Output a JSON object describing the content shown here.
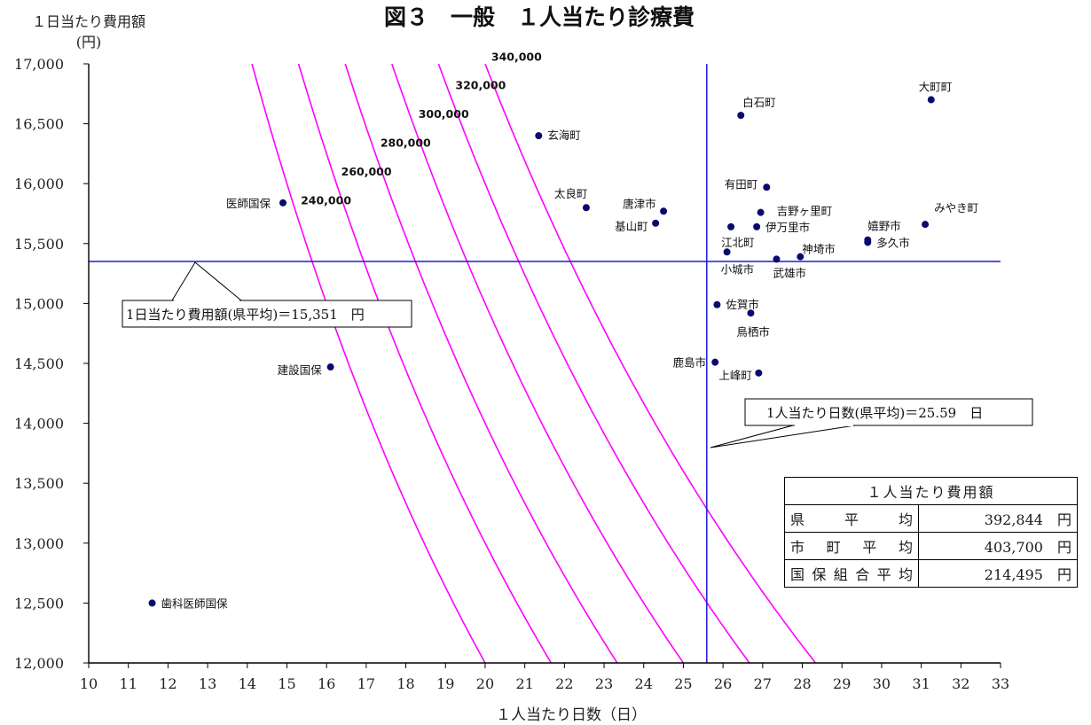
{
  "chart_data": {
    "type": "scatter",
    "title": "図３　一般　１人当たり診療費",
    "xlabel": "１人当たり日数（日）",
    "ylabel_line1": "１日当たり費用額",
    "ylabel_line2": "(円)",
    "xlim": [
      10,
      33
    ],
    "ylim": [
      12000,
      17000
    ],
    "x_ticks": [
      "10",
      "11",
      "12",
      "13",
      "14",
      "15",
      "16",
      "17",
      "18",
      "19",
      "20",
      "21",
      "22",
      "23",
      "24",
      "25",
      "26",
      "27",
      "28",
      "29",
      "30",
      "31",
      "32",
      "33"
    ],
    "y_ticks": [
      "12,000",
      "12,500",
      "13,000",
      "13,500",
      "14,000",
      "14,500",
      "15,000",
      "15,500",
      "16,000",
      "16,500",
      "17,000"
    ],
    "points": [
      {
        "name": "大町町",
        "x": 31.25,
        "y": 16700
      },
      {
        "name": "白石町",
        "x": 26.45,
        "y": 16570
      },
      {
        "name": "玄海町",
        "x": 21.35,
        "y": 16400
      },
      {
        "name": "有田町",
        "x": 27.1,
        "y": 15970
      },
      {
        "name": "医師国保",
        "x": 14.9,
        "y": 15840
      },
      {
        "name": "太良町",
        "x": 22.55,
        "y": 15800
      },
      {
        "name": "唐津市",
        "x": 24.5,
        "y": 15770
      },
      {
        "name": "吉野ヶ里町",
        "x": 26.95,
        "y": 15760
      },
      {
        "name": "基山町",
        "x": 24.3,
        "y": 15670
      },
      {
        "name": "みやき町",
        "x": 31.1,
        "y": 15660
      },
      {
        "name": "伊万里市",
        "x": 26.85,
        "y": 15640
      },
      {
        "name": "江北町",
        "x": 26.2,
        "y": 15640
      },
      {
        "name": "嬉野市",
        "x": 29.65,
        "y": 15530
      },
      {
        "name": "多久市",
        "x": 29.65,
        "y": 15510
      },
      {
        "name": "小城市",
        "x": 26.1,
        "y": 15430
      },
      {
        "name": "神埼市",
        "x": 27.95,
        "y": 15390
      },
      {
        "name": "武雄市",
        "x": 27.35,
        "y": 15370
      },
      {
        "name": "佐賀市",
        "x": 25.85,
        "y": 14990
      },
      {
        "name": "鳥栖市",
        "x": 26.7,
        "y": 14920
      },
      {
        "name": "建設国保",
        "x": 16.1,
        "y": 14470
      },
      {
        "name": "鹿島市",
        "x": 25.8,
        "y": 14510
      },
      {
        "name": "上峰町",
        "x": 26.9,
        "y": 14420
      },
      {
        "name": "歯科医師国保",
        "x": 11.6,
        "y": 12500
      }
    ],
    "iso_cost_curves": [
      240000,
      260000,
      280000,
      300000,
      320000,
      340000
    ],
    "iso_cost_labels": [
      "240,000",
      "260,000",
      "280,000",
      "300,000",
      "320,000",
      "340,000"
    ],
    "reference_lines": {
      "avg_days": 25.59,
      "avg_cost_per_day": 15351,
      "avg_days_label": "1人当たり日数(県平均)＝25.59　日",
      "avg_cost_label": "1日当たり費用額(県平均)＝15,351　円"
    },
    "colors": {
      "points": "#0a0a6e",
      "curves": "#ff00ff",
      "ref_lines": "#1a1adb",
      "axes": "#000000"
    },
    "grid": false
  },
  "summary_table": {
    "header": "１人当たり費用額",
    "rows": [
      {
        "label": "県平均",
        "value": "392,844",
        "unit": "円"
      },
      {
        "label": "市町平均",
        "value": "403,700",
        "unit": "円"
      },
      {
        "label": "国保組合平均",
        "value": "214,495",
        "unit": "円"
      }
    ]
  }
}
